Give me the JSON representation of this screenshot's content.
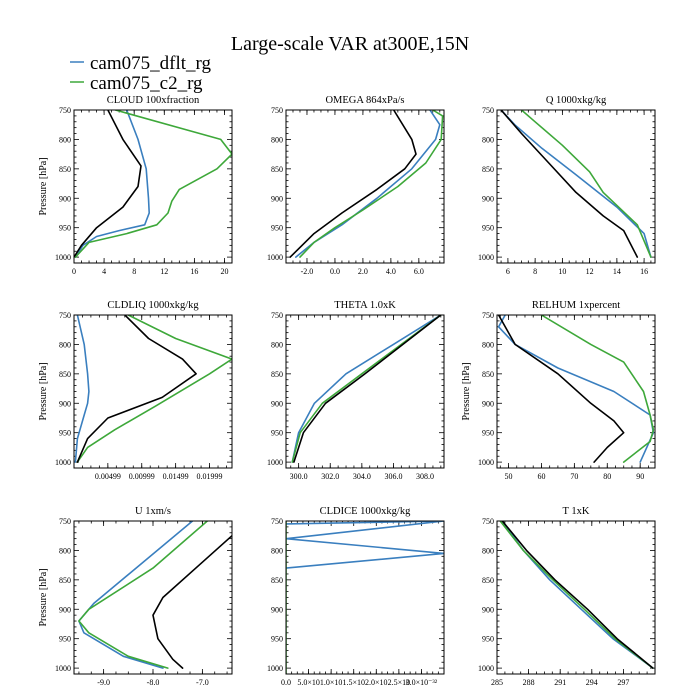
{
  "figure": {
    "title": "Large-scale VAR at300E,15N",
    "legend": [
      {
        "name": "cam075_dflt_rg",
        "color": "#3a7fbf"
      },
      {
        "name": "cam075_c2_rg",
        "color": "#3ea83a"
      }
    ],
    "obs_color": "#000000"
  },
  "chart_data": [
    {
      "type": "line",
      "title": "CLOUD  100xfraction",
      "ylabel": "Pressure [hPa]",
      "xlim": [
        0,
        21
      ],
      "ylim": [
        750,
        1010
      ],
      "xticks": [
        0,
        4,
        8,
        12,
        16,
        20
      ],
      "xtick_labels": [
        "0",
        "4",
        "8",
        "12",
        "16",
        "20"
      ],
      "yticks": [
        750,
        800,
        850,
        900,
        950,
        1000
      ],
      "series": [
        {
          "name": "cam075_dflt_rg",
          "color": "#3a7fbf",
          "x": [
            7,
            8.5,
            9.6,
            9.9,
            10,
            9.4,
            6,
            3,
            1.2,
            0.2
          ],
          "y": [
            750,
            800,
            850,
            900,
            925,
            945,
            955,
            965,
            980,
            1000
          ]
        },
        {
          "name": "cam075_c2_rg",
          "color": "#3ea83a",
          "x": [
            5.5,
            19.5,
            21,
            19,
            14,
            13,
            12.5,
            11,
            7,
            2,
            0.2
          ],
          "y": [
            750,
            800,
            825,
            850,
            885,
            905,
            925,
            945,
            960,
            975,
            1000
          ]
        },
        {
          "name": "",
          "color": "#000000",
          "x": [
            4.5,
            6.5,
            8.9,
            8.5,
            6.5,
            3,
            1,
            0
          ],
          "y": [
            750,
            800,
            845,
            880,
            915,
            950,
            980,
            1000
          ]
        }
      ]
    },
    {
      "type": "line",
      "title": "OMEGA  864xPa/s",
      "ylabel": "",
      "xlim": [
        -3.5,
        7.8
      ],
      "ylim": [
        750,
        1010
      ],
      "xticks": [
        -2.0,
        0.0,
        2.0,
        4.0,
        6.0
      ],
      "xtick_labels": [
        "-2.0",
        "0.0",
        "2.0",
        "4.0",
        "6.0"
      ],
      "yticks": [
        750,
        800,
        850,
        900,
        950,
        1000
      ],
      "series": [
        {
          "name": "cam075_dflt_rg",
          "color": "#3a7fbf",
          "x": [
            6.8,
            7.5,
            7.2,
            5.5,
            3,
            0.5,
            -1.5,
            -2.8
          ],
          "y": [
            750,
            775,
            800,
            850,
            900,
            945,
            975,
            1000
          ]
        },
        {
          "name": "cam075_c2_rg",
          "color": "#3ea83a",
          "x": [
            7,
            7.7,
            7.6,
            6.5,
            4.5,
            2,
            0,
            -1.5,
            -2.5
          ],
          "y": [
            750,
            760,
            800,
            840,
            880,
            920,
            950,
            975,
            1000
          ]
        },
        {
          "name": "",
          "color": "#000000",
          "x": [
            4.2,
            5.5,
            5.8,
            5,
            3,
            0.5,
            -1.5,
            -3.2
          ],
          "y": [
            750,
            800,
            825,
            850,
            885,
            925,
            960,
            1000
          ]
        }
      ]
    },
    {
      "type": "line",
      "title": "Q  1000xkg/kg",
      "ylabel": "",
      "xlim": [
        5.2,
        16.8
      ],
      "ylim": [
        750,
        1010
      ],
      "xticks": [
        6,
        8,
        10,
        12,
        14,
        16
      ],
      "xtick_labels": [
        "6",
        "8",
        "10",
        "12",
        "14",
        "16"
      ],
      "yticks": [
        750,
        800,
        850,
        900,
        950,
        1000
      ],
      "series": [
        {
          "name": "cam075_dflt_rg",
          "color": "#3a7fbf",
          "x": [
            5.5,
            6.5,
            8.5,
            11,
            14,
            16,
            16.5
          ],
          "y": [
            750,
            775,
            815,
            860,
            915,
            960,
            1000
          ]
        },
        {
          "name": "cam075_c2_rg",
          "color": "#3ea83a",
          "x": [
            7,
            8,
            10,
            12,
            13,
            15.5,
            16.5
          ],
          "y": [
            750,
            770,
            810,
            855,
            890,
            945,
            1000
          ]
        },
        {
          "name": "",
          "color": "#000000",
          "x": [
            5.5,
            7,
            9,
            11,
            13,
            14.5,
            15.5
          ],
          "y": [
            750,
            790,
            840,
            890,
            930,
            955,
            1000
          ]
        }
      ]
    },
    {
      "type": "line",
      "title": "CLDLIQ  1000xkg/kg",
      "ylabel": "Pressure [hPa]",
      "xlim": [
        0,
        0.0233
      ],
      "ylim": [
        750,
        1010
      ],
      "xticks": [
        0.00499,
        0.00999,
        0.01499,
        0.01999
      ],
      "xtick_labels": [
        "0.00499",
        "0.00999",
        "0.01499",
        "0.01999"
      ],
      "x_minor_ticks": [
        0.00249,
        0.00749,
        0.01249,
        0.01749,
        0.02249
      ],
      "yticks": [
        750,
        800,
        850,
        900,
        950,
        1000
      ],
      "series": [
        {
          "name": "cam075_dflt_rg",
          "color": "#3a7fbf",
          "x": [
            0.0005,
            0.0015,
            0.002,
            0.0022,
            0.002,
            0.0015,
            0.001,
            0.0005,
            0.0002
          ],
          "y": [
            750,
            800,
            850,
            880,
            900,
            920,
            940,
            960,
            1000
          ]
        },
        {
          "name": "cam075_c2_rg",
          "color": "#3ea83a",
          "x": [
            0.008,
            0.015,
            0.0233,
            0.02,
            0.012,
            0.006,
            0.002,
            0.0005
          ],
          "y": [
            750,
            790,
            825,
            850,
            905,
            945,
            975,
            1000
          ]
        },
        {
          "name": "",
          "color": "#000000",
          "x": [
            0.0075,
            0.011,
            0.016,
            0.018,
            0.013,
            0.005,
            0.002,
            0.0005
          ],
          "y": [
            750,
            790,
            825,
            850,
            890,
            925,
            960,
            1000
          ]
        }
      ]
    },
    {
      "type": "line",
      "title": "THETA  1.0xK",
      "ylabel": "",
      "xlim": [
        299.2,
        309.2
      ],
      "ylim": [
        750,
        1010
      ],
      "xticks": [
        300,
        302,
        304,
        306,
        308
      ],
      "xtick_labels": [
        "300.0",
        "302.0",
        "304.0",
        "306.0",
        "308.0"
      ],
      "yticks": [
        750,
        800,
        850,
        900,
        950,
        1000
      ],
      "series": [
        {
          "name": "cam075_dflt_rg",
          "color": "#3a7fbf",
          "x": [
            309,
            306,
            303,
            301,
            300,
            299.6
          ],
          "y": [
            750,
            800,
            850,
            900,
            950,
            1000
          ]
        },
        {
          "name": "cam075_c2_rg",
          "color": "#3ea83a",
          "x": [
            309,
            306.5,
            304,
            301.5,
            300.1,
            299.6
          ],
          "y": [
            750,
            800,
            850,
            900,
            950,
            1000
          ]
        },
        {
          "name": "",
          "color": "#000000",
          "x": [
            309,
            306.6,
            304.2,
            301.7,
            300.3,
            299.7
          ],
          "y": [
            750,
            800,
            850,
            900,
            950,
            1000
          ]
        }
      ]
    },
    {
      "type": "line",
      "title": "RELHUM  1xpercent",
      "ylabel": "Pressure [hPa]",
      "xlim": [
        46.5,
        94.5
      ],
      "ylim": [
        750,
        1010
      ],
      "xticks": [
        50,
        60,
        70,
        80,
        90
      ],
      "xtick_labels": [
        "50",
        "60",
        "70",
        "80",
        "90"
      ],
      "yticks": [
        750,
        800,
        850,
        900,
        950,
        1000
      ],
      "series": [
        {
          "name": "cam075_dflt_rg",
          "color": "#3a7fbf",
          "x": [
            49,
            47,
            52,
            65,
            82,
            93,
            94,
            90
          ],
          "y": [
            750,
            770,
            800,
            840,
            880,
            920,
            950,
            1000
          ]
        },
        {
          "name": "cam075_c2_rg",
          "color": "#3ea83a",
          "x": [
            60,
            75,
            85,
            91,
            93,
            94,
            93,
            85
          ],
          "y": [
            750,
            800,
            830,
            880,
            920,
            945,
            965,
            1000
          ]
        },
        {
          "name": "",
          "color": "#000000",
          "x": [
            47,
            52,
            65,
            75,
            82,
            85,
            80,
            76
          ],
          "y": [
            750,
            800,
            850,
            900,
            930,
            950,
            975,
            1000
          ]
        }
      ]
    },
    {
      "type": "line",
      "title": "U  1xm/s",
      "ylabel": "Pressure [hPa]",
      "xlim": [
        -9.6,
        -6.4
      ],
      "ylim": [
        750,
        1010
      ],
      "xticks": [
        -9.0,
        -8.0,
        -7.0
      ],
      "xtick_labels": [
        "-9.0",
        "-8.0",
        "-7.0"
      ],
      "yticks": [
        750,
        800,
        850,
        900,
        950,
        1000
      ],
      "series": [
        {
          "name": "cam075_dflt_rg",
          "color": "#3a7fbf",
          "x": [
            -7.2,
            -8.2,
            -9.2,
            -9.5,
            -9.4,
            -8.6,
            -7.8
          ],
          "y": [
            750,
            820,
            890,
            920,
            940,
            980,
            1000
          ]
        },
        {
          "name": "cam075_c2_rg",
          "color": "#3ea83a",
          "x": [
            -6.9,
            -8.0,
            -9.3,
            -9.5,
            -9.3,
            -8.5,
            -7.7
          ],
          "y": [
            750,
            830,
            900,
            920,
            940,
            980,
            1000
          ]
        },
        {
          "name": "",
          "color": "#000000",
          "x": [
            -6.4,
            -7.0,
            -7.8,
            -8.0,
            -7.9,
            -7.6,
            -7.4
          ],
          "y": [
            775,
            820,
            880,
            910,
            950,
            985,
            1000
          ]
        }
      ]
    },
    {
      "type": "line",
      "title": "CLDICE  1000xkg/kg",
      "ylabel": "",
      "xlim": [
        0,
        3.5e-32
      ],
      "ylim": [
        750,
        1010
      ],
      "xticks": [
        0,
        5e-33,
        1e-32,
        1.5e-32,
        2e-32,
        2.5e-32,
        3e-32
      ],
      "xtick_labels": [
        "0.0",
        "5.0×10",
        "1.0×10",
        "1.5×10",
        "2.0×10",
        "2.5×10",
        "3.0×10⁻³²"
      ],
      "yticks": [
        750,
        800,
        850,
        900,
        950,
        1000
      ],
      "series": [
        {
          "name": "cam075_dflt_rg",
          "color": "#3a7fbf",
          "x": [
            0,
            3.5e-32,
            0,
            3.5e-32,
            0
          ],
          "y": [
            755,
            750,
            780,
            805,
            830
          ]
        },
        {
          "name": "cam075_c2_rg",
          "color": "#3ea83a",
          "x": [
            0,
            0
          ],
          "y": [
            750,
            1010
          ]
        },
        {
          "name": "",
          "color": "#000000",
          "x": [],
          "y": []
        }
      ]
    },
    {
      "type": "line",
      "title": "T  1xK",
      "ylabel": "",
      "xlim": [
        285,
        300
      ],
      "ylim": [
        750,
        1010
      ],
      "xticks": [
        285,
        288,
        291,
        294,
        297
      ],
      "xtick_labels": [
        "285",
        "288",
        "291",
        "294",
        "297"
      ],
      "yticks": [
        750,
        800,
        850,
        900,
        950,
        1000
      ],
      "series": [
        {
          "name": "cam075_dflt_rg",
          "color": "#3a7fbf",
          "x": [
            285.5,
            287.5,
            290,
            293,
            296,
            299.8
          ],
          "y": [
            750,
            800,
            850,
            900,
            950,
            1000
          ]
        },
        {
          "name": "cam075_c2_rg",
          "color": "#3ea83a",
          "x": [
            285.3,
            287.5,
            290.3,
            293.3,
            296.2,
            299.8
          ],
          "y": [
            750,
            800,
            850,
            900,
            950,
            1000
          ]
        },
        {
          "name": "",
          "color": "#000000",
          "x": [
            285.5,
            287.8,
            290.5,
            293.6,
            296.4,
            299.8
          ],
          "y": [
            750,
            800,
            850,
            900,
            950,
            1000
          ]
        }
      ]
    }
  ]
}
